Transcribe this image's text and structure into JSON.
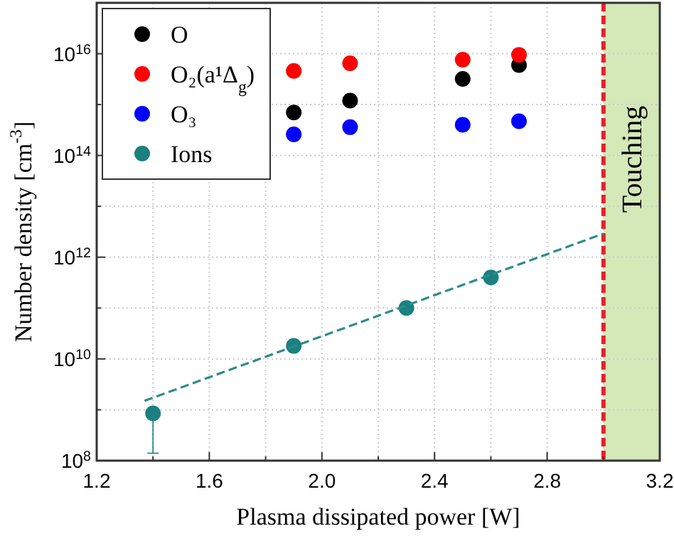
{
  "chart_data": {
    "type": "scatter",
    "xlabel": "Plasma dissipated power [W]",
    "ylabel": "Number density [cm$^{-3}$]",
    "xlim": [
      1.2,
      3.2
    ],
    "xticks": [
      1.2,
      {
        "value": 1.4,
        "label": null
      },
      1.6,
      {
        "value": 1.8,
        "label": null
      },
      {
        "value": 2.0,
        "label": "2.0"
      },
      {
        "value": 2.2,
        "label": null
      },
      2.4,
      {
        "value": 2.6,
        "label": null
      },
      2.8,
      {
        "value": 3.0,
        "label": null
      },
      3.2
    ],
    "ylim": [
      100000000.0,
      1e+17
    ],
    "yticks": [
      {
        "value": 100000000.0,
        "label": "10$^{8}$"
      },
      {
        "value": 1000000000.0,
        "label": null
      },
      {
        "value": 10000000000.0,
        "label": "10$^{10}$"
      },
      {
        "value": 100000000000.0,
        "label": null
      },
      {
        "value": 1000000000000.0,
        "label": "10$^{12}$"
      },
      {
        "value": 10000000000000.0,
        "label": null
      },
      {
        "value": 100000000000000.0,
        "label": "10$^{14}$"
      },
      {
        "value": 1000000000000000.0,
        "label": null
      },
      {
        "value": 1e+16,
        "label": "10$^{16}$"
      }
    ],
    "log": "y",
    "grid": true,
    "legend": "top left",
    "marker": "circle",
    "series": [
      {
        "name": "O",
        "color": "#000000",
        "x": [
          1.9,
          2.1,
          2.5,
          2.7
        ],
        "values": [
          700000000000000.0,
          1200000000000000.0,
          3200000000000000.0,
          6000000000000000.0
        ]
      },
      {
        "name": "O₂(a¹Δ$_{g}$)",
        "color": "#ff0000",
        "x": [
          1.9,
          2.1,
          2.5,
          2.7
        ],
        "values": [
          4600000000000000.0,
          6500000000000000.0,
          7600000000000000.0,
          9500000000000000.0
        ]
      },
      {
        "name": "O₃",
        "color": "#0000ff",
        "x": [
          1.9,
          2.1,
          2.5,
          2.7
        ],
        "values": [
          260000000000000.0,
          360000000000000.0,
          400000000000000.0,
          470000000000000.0
        ]
      },
      {
        "name": "Ions",
        "color": "#1a8080",
        "x": [
          1.4,
          1.9,
          2.3,
          2.6
        ],
        "values": [
          850000000.0,
          18000000000.0,
          100000000000.0,
          400000000000.0
        ],
        "errors": [
          [
            140000000.0,
            850000000.0
          ],
          null,
          null,
          null
        ]
      },
      {
        "type": "line",
        "color": "#2e8b8b",
        "line_style": "dashed",
        "marker": "none",
        "x": [
          1.37,
          3.0
        ],
        "values": [
          1500000000.0,
          2900000000000.0
        ]
      }
    ],
    "ref_lines": [
      {
        "axis": "x",
        "value": 3.0,
        "color": "#e8202a",
        "line_style": "dashed"
      }
    ],
    "bands": [
      {
        "axis": "x",
        "from": 3.0,
        "to": 3.2,
        "label": "Touching",
        "color": "#d4e8b8"
      }
    ]
  }
}
